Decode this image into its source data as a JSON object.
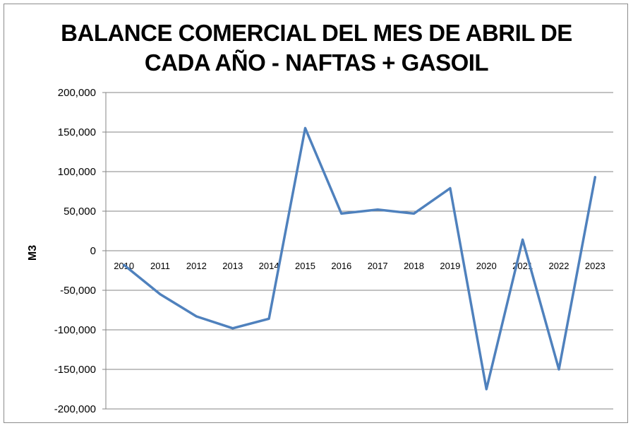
{
  "chart_data": {
    "type": "line",
    "title_lines": [
      "BALANCE COMERCIAL DEL MES DE ABRIL DE",
      "CADA AÑO - NAFTAS + GASOIL"
    ],
    "xlabel": "",
    "ylabel": "M3",
    "categories": [
      "2010",
      "2011",
      "2012",
      "2013",
      "2014",
      "2015",
      "2016",
      "2017",
      "2018",
      "2019",
      "2020",
      "2021",
      "2022",
      "2023"
    ],
    "series": [
      {
        "values": [
          -18000,
          -55000,
          -83000,
          -98000,
          -86000,
          155000,
          47000,
          52000,
          47000,
          79000,
          -175000,
          14000,
          -150000,
          93000
        ],
        "color": "#4f81bd"
      }
    ],
    "ylim": [
      -200000,
      200000
    ],
    "yticks": [
      200000,
      150000,
      100000,
      50000,
      0,
      -50000,
      -100000,
      -150000,
      -200000
    ],
    "ytick_labels": [
      "200,000",
      "150,000",
      "100,000",
      "50,000",
      "0",
      "-50,000",
      "-100,000",
      "-150,000",
      "-200,000"
    ],
    "grid": true,
    "legend": "none"
  }
}
